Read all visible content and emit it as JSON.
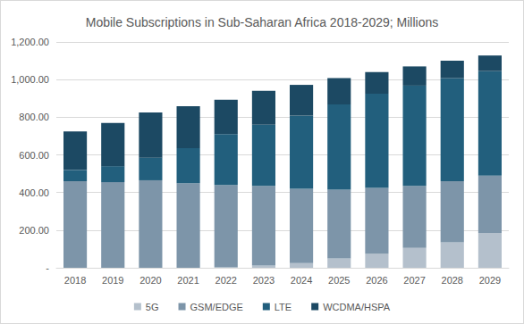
{
  "chart_data": {
    "type": "bar",
    "title": "Mobile Subscriptions in Sub-Saharan Africa 2018-2029; Millions",
    "stacked": true,
    "grid": true,
    "legend": "bottom",
    "categories": [
      "2018",
      "2019",
      "2020",
      "2021",
      "2022",
      "2023",
      "2024",
      "2025",
      "2026",
      "2027",
      "2028",
      "2029"
    ],
    "series": [
      {
        "name": "5G",
        "color": "#b4c0cc",
        "values": [
          0,
          0,
          0,
          0,
          2,
          12,
          25,
          50,
          75,
          105,
          135,
          185
        ]
      },
      {
        "name": "GSM/EDGE",
        "color": "#7d95a9",
        "values": [
          460,
          455,
          465,
          450,
          438,
          423,
          395,
          365,
          350,
          330,
          325,
          305
        ]
      },
      {
        "name": "LTE",
        "color": "#225f7d",
        "values": [
          60,
          85,
          120,
          185,
          270,
          325,
          388,
          453,
          500,
          533,
          548,
          555
        ]
      },
      {
        "name": "WCDMA/HSPA",
        "color": "#1c4963",
        "values": [
          205,
          230,
          240,
          223,
          183,
          180,
          164,
          140,
          115,
          102,
          92,
          83
        ]
      }
    ],
    "ylim": [
      0,
      1200
    ],
    "yticks": [
      {
        "value": 0,
        "label": "-"
      },
      {
        "value": 200,
        "label": "200.00"
      },
      {
        "value": 400,
        "label": "400.00"
      },
      {
        "value": 600,
        "label": "600.00"
      },
      {
        "value": 800,
        "label": "800.00"
      },
      {
        "value": 1000,
        "label": "1,000.00"
      },
      {
        "value": 1200,
        "label": "1,200.00"
      }
    ]
  }
}
